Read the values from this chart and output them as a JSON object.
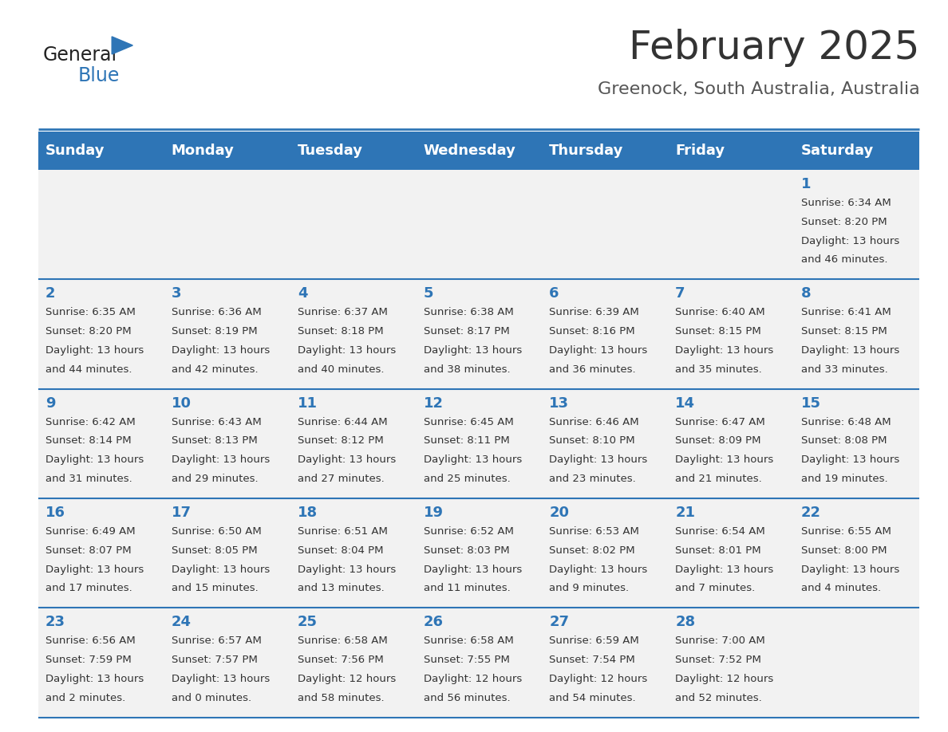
{
  "title": "February 2025",
  "subtitle": "Greenock, South Australia, Australia",
  "header_bg": "#2E75B6",
  "header_text_color": "#FFFFFF",
  "cell_bg_light": "#F2F2F2",
  "cell_bg_white": "#FFFFFF",
  "day_number_color": "#2E75B6",
  "text_color": "#333333",
  "line_color": "#2E75B6",
  "days_of_week": [
    "Sunday",
    "Monday",
    "Tuesday",
    "Wednesday",
    "Thursday",
    "Friday",
    "Saturday"
  ],
  "weeks": [
    [
      {
        "day": null,
        "sunrise": null,
        "sunset": null,
        "daylight": null
      },
      {
        "day": null,
        "sunrise": null,
        "sunset": null,
        "daylight": null
      },
      {
        "day": null,
        "sunrise": null,
        "sunset": null,
        "daylight": null
      },
      {
        "day": null,
        "sunrise": null,
        "sunset": null,
        "daylight": null
      },
      {
        "day": null,
        "sunrise": null,
        "sunset": null,
        "daylight": null
      },
      {
        "day": null,
        "sunrise": null,
        "sunset": null,
        "daylight": null
      },
      {
        "day": 1,
        "sunrise": "6:34 AM",
        "sunset": "8:20 PM",
        "daylight": "13 hours\nand 46 minutes."
      }
    ],
    [
      {
        "day": 2,
        "sunrise": "6:35 AM",
        "sunset": "8:20 PM",
        "daylight": "13 hours\nand 44 minutes."
      },
      {
        "day": 3,
        "sunrise": "6:36 AM",
        "sunset": "8:19 PM",
        "daylight": "13 hours\nand 42 minutes."
      },
      {
        "day": 4,
        "sunrise": "6:37 AM",
        "sunset": "8:18 PM",
        "daylight": "13 hours\nand 40 minutes."
      },
      {
        "day": 5,
        "sunrise": "6:38 AM",
        "sunset": "8:17 PM",
        "daylight": "13 hours\nand 38 minutes."
      },
      {
        "day": 6,
        "sunrise": "6:39 AM",
        "sunset": "8:16 PM",
        "daylight": "13 hours\nand 36 minutes."
      },
      {
        "day": 7,
        "sunrise": "6:40 AM",
        "sunset": "8:15 PM",
        "daylight": "13 hours\nand 35 minutes."
      },
      {
        "day": 8,
        "sunrise": "6:41 AM",
        "sunset": "8:15 PM",
        "daylight": "13 hours\nand 33 minutes."
      }
    ],
    [
      {
        "day": 9,
        "sunrise": "6:42 AM",
        "sunset": "8:14 PM",
        "daylight": "13 hours\nand 31 minutes."
      },
      {
        "day": 10,
        "sunrise": "6:43 AM",
        "sunset": "8:13 PM",
        "daylight": "13 hours\nand 29 minutes."
      },
      {
        "day": 11,
        "sunrise": "6:44 AM",
        "sunset": "8:12 PM",
        "daylight": "13 hours\nand 27 minutes."
      },
      {
        "day": 12,
        "sunrise": "6:45 AM",
        "sunset": "8:11 PM",
        "daylight": "13 hours\nand 25 minutes."
      },
      {
        "day": 13,
        "sunrise": "6:46 AM",
        "sunset": "8:10 PM",
        "daylight": "13 hours\nand 23 minutes."
      },
      {
        "day": 14,
        "sunrise": "6:47 AM",
        "sunset": "8:09 PM",
        "daylight": "13 hours\nand 21 minutes."
      },
      {
        "day": 15,
        "sunrise": "6:48 AM",
        "sunset": "8:08 PM",
        "daylight": "13 hours\nand 19 minutes."
      }
    ],
    [
      {
        "day": 16,
        "sunrise": "6:49 AM",
        "sunset": "8:07 PM",
        "daylight": "13 hours\nand 17 minutes."
      },
      {
        "day": 17,
        "sunrise": "6:50 AM",
        "sunset": "8:05 PM",
        "daylight": "13 hours\nand 15 minutes."
      },
      {
        "day": 18,
        "sunrise": "6:51 AM",
        "sunset": "8:04 PM",
        "daylight": "13 hours\nand 13 minutes."
      },
      {
        "day": 19,
        "sunrise": "6:52 AM",
        "sunset": "8:03 PM",
        "daylight": "13 hours\nand 11 minutes."
      },
      {
        "day": 20,
        "sunrise": "6:53 AM",
        "sunset": "8:02 PM",
        "daylight": "13 hours\nand 9 minutes."
      },
      {
        "day": 21,
        "sunrise": "6:54 AM",
        "sunset": "8:01 PM",
        "daylight": "13 hours\nand 7 minutes."
      },
      {
        "day": 22,
        "sunrise": "6:55 AM",
        "sunset": "8:00 PM",
        "daylight": "13 hours\nand 4 minutes."
      }
    ],
    [
      {
        "day": 23,
        "sunrise": "6:56 AM",
        "sunset": "7:59 PM",
        "daylight": "13 hours\nand 2 minutes."
      },
      {
        "day": 24,
        "sunrise": "6:57 AM",
        "sunset": "7:57 PM",
        "daylight": "13 hours\nand 0 minutes."
      },
      {
        "day": 25,
        "sunrise": "6:58 AM",
        "sunset": "7:56 PM",
        "daylight": "12 hours\nand 58 minutes."
      },
      {
        "day": 26,
        "sunrise": "6:58 AM",
        "sunset": "7:55 PM",
        "daylight": "12 hours\nand 56 minutes."
      },
      {
        "day": 27,
        "sunrise": "6:59 AM",
        "sunset": "7:54 PM",
        "daylight": "12 hours\nand 54 minutes."
      },
      {
        "day": 28,
        "sunrise": "7:00 AM",
        "sunset": "7:52 PM",
        "daylight": "12 hours\nand 52 minutes."
      },
      {
        "day": null,
        "sunrise": null,
        "sunset": null,
        "daylight": null
      }
    ]
  ],
  "title_fontsize": 36,
  "subtitle_fontsize": 16,
  "header_fontsize": 13,
  "day_num_fontsize": 13,
  "cell_fontsize": 9.5
}
